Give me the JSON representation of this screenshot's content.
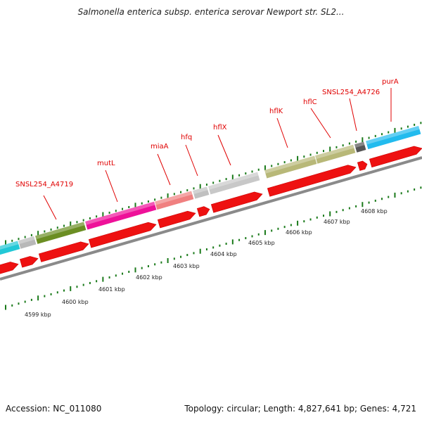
{
  "title": "Salmonella enterica subsp. enterica serovar Newport str. SL2...",
  "footer": {
    "accession": "Accession: NC_011080",
    "stats": "Topology: circular; Length: 4,827,641 bp; Genes: 4,721"
  },
  "colors": {
    "cds": "#ee1111",
    "backbone": "#888888",
    "tick": "#1a7a1a",
    "label": "#e00000"
  },
  "kbp_labels": [
    "4599 kbp",
    "4600 kbp",
    "4601 kbp",
    "4602 kbp",
    "4603 kbp",
    "4604 kbp",
    "4605 kbp",
    "4606 kbp",
    "4607 kbp",
    "4608 kbp"
  ],
  "genes": [
    {
      "label": "",
      "color": "#22c8d6"
    },
    {
      "label": "",
      "color": "#b8b8b8"
    },
    {
      "label": "SNSL254_A4719",
      "color": "#6b8e23"
    },
    {
      "label": "mutL",
      "color": "#ee1199"
    },
    {
      "label": "miaA",
      "color": "#f08080"
    },
    {
      "label": "hfq",
      "color": "#c0c0c0"
    },
    {
      "label": "hflX",
      "color": "#c8c8c8"
    },
    {
      "label": "hflK",
      "color": "#b8b878"
    },
    {
      "label": "hflC",
      "color": "#b8b878"
    },
    {
      "label": "SNSL254_A4726",
      "color": "#555555"
    },
    {
      "label": "purA",
      "color": "#22bbee"
    }
  ]
}
